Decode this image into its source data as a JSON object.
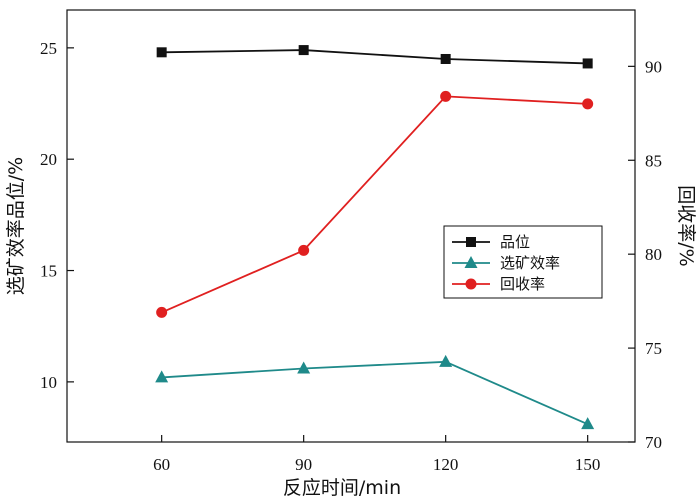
{
  "chart_data": {
    "type": "line",
    "x": [
      60,
      90,
      120,
      150
    ],
    "xlabel": "反应时间/min",
    "ylabel_left": "选矿效率品位/%",
    "ylabel_right": "回收率/%",
    "xlim": [
      40,
      160
    ],
    "ylim_left": [
      7.3,
      26.7
    ],
    "ylim_right": [
      70,
      93
    ],
    "xticks": [
      "60",
      "90",
      "120",
      "150"
    ],
    "yticks_left": [
      "10",
      "15",
      "20",
      "25"
    ],
    "yticks_right": [
      "70",
      "75",
      "80",
      "85",
      "90"
    ],
    "legend_position": "center-right",
    "series": [
      {
        "name": "品位",
        "axis": "left",
        "values": [
          24.8,
          24.9,
          24.5,
          24.3
        ],
        "color": "#111111",
        "marker": "square"
      },
      {
        "name": "选矿效率",
        "axis": "left",
        "values": [
          10.2,
          10.6,
          10.9,
          8.1
        ],
        "color": "#1f8a8a",
        "marker": "triangle"
      },
      {
        "name": "回收率",
        "axis": "right",
        "values": [
          76.9,
          80.2,
          88.4,
          88.0
        ],
        "color": "#e02020",
        "marker": "circle"
      }
    ]
  }
}
